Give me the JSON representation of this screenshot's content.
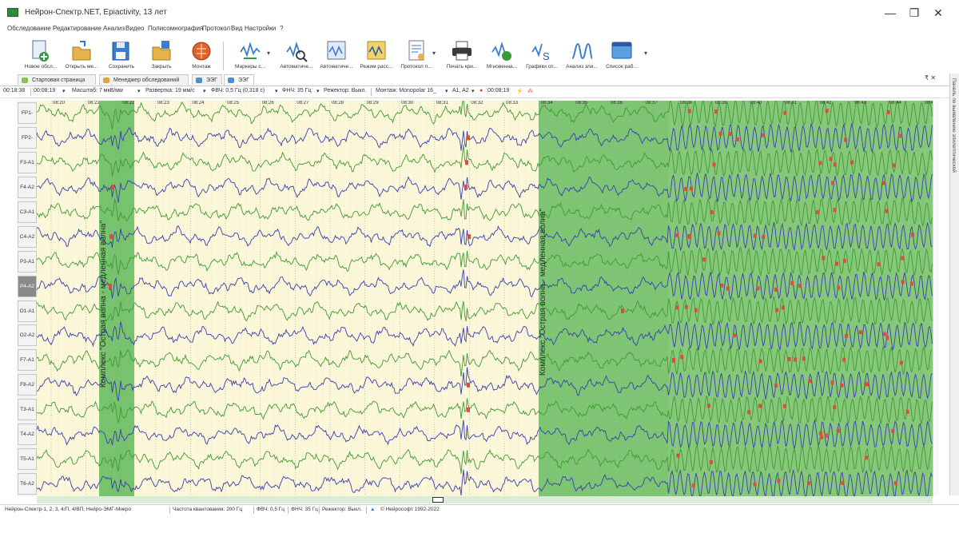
{
  "window": {
    "title": "Нейрон-Спектр.NET, Epiactivity, 13 лет",
    "minimize": "—",
    "maximize": "❐",
    "close": "✕"
  },
  "menu": [
    "Обследование",
    "Редактирование",
    "Анализ",
    "Видео",
    "Полисомнография",
    "Протокол",
    "Вид",
    "Настройки",
    "?"
  ],
  "toolbar": [
    {
      "label": "Новое обсл...",
      "icon": "new-exam-icon"
    },
    {
      "label": "Открыть ме...",
      "icon": "open-icon"
    },
    {
      "label": "Сохранить",
      "icon": "save-icon"
    },
    {
      "label": "Закрыть",
      "icon": "close-exam-icon"
    },
    {
      "label": "Монтаж",
      "icon": "montage-icon"
    },
    {
      "label": "Маркеры с...",
      "icon": "markers-icon"
    },
    {
      "label": "Автоматиче...",
      "icon": "auto-analysis-icon"
    },
    {
      "label": "Автоматиче...",
      "icon": "auto-search-icon"
    },
    {
      "label": "Режим расс...",
      "icon": "view-mode-icon"
    },
    {
      "label": "Протокол п...",
      "icon": "protocol-icon"
    },
    {
      "label": "Печать кри...",
      "icon": "print-icon"
    },
    {
      "label": "Мгновенна...",
      "icon": "instant-map-icon"
    },
    {
      "label": "Графики сп...",
      "icon": "spectrum-graphs-icon"
    },
    {
      "label": "Анализ эли...",
      "icon": "epi-analysis-icon"
    },
    {
      "label": "Список раб...",
      "icon": "work-list-icon"
    }
  ],
  "tabs": [
    {
      "label": "Стартовая страница",
      "active": false
    },
    {
      "label": "Менеджер обследований",
      "active": false
    },
    {
      "label": "ЭЭГ",
      "active": false
    },
    {
      "label": "ЭЭГ",
      "active": true
    }
  ],
  "tab_controls": "₹ ✕",
  "settings": {
    "time_current": "00:18:38",
    "time_window": "00:08:19",
    "scale": "Масштаб: 7 мкВ/мм",
    "sweep": "Развертка: 19 мм/с",
    "hpf": "ФВЧ: 0,5 Гц (0,318 с)",
    "lpf": "ФНЧ: 35 Гц",
    "notch": "Режектор: Выкл.",
    "montage": "Монтаж: Monopolar 16_",
    "reference": "A1, A2",
    "marker_time": "00:08:19"
  },
  "side_panel": "Панель по выявлению эпилептической",
  "channels": [
    "FP1-A1",
    "FP2-A2",
    "F3-A1",
    "F4-A2",
    "C3-A1",
    "C4-A2",
    "P3-A1",
    "P4-A2",
    "O1-A1",
    "O2-A2",
    "F7-A1",
    "F8-A2",
    "T3-A1",
    "T4-A2",
    "T5-A1",
    "T6-A2"
  ],
  "selected_channel": "P4-A2",
  "time_ticks": [
    "08:20",
    "08:21",
    "08:22",
    "08:23",
    "08:24",
    "08:25",
    "08:26",
    "08:27",
    "08:28",
    "08:29",
    "08:30",
    "08:31",
    "08:32",
    "08:33",
    "08:34",
    "08:35",
    "08:36",
    "08:37",
    "08:38",
    "08:39",
    "08:40",
    "08:41",
    "08:42",
    "08:43",
    "08:44",
    "08:45"
  ],
  "annotations": [
    "Комплекс \"Острая волна - медленная волна\"",
    "Комплекс \"Острая волна - медленная волна\""
  ],
  "status": {
    "devices": "Нейрон-Спектр-1, 2, 3, 4/П, 4/ВП, Нейро-ЭМГ-Микро",
    "sampling": "Частота квантования: 200 Гц",
    "hpf": "ФВЧ: 0,5 Гц",
    "lpf": "ФНЧ: 35 Гц",
    "notch": "Режектор: Выкл.",
    "copyright": "© Нейрософт 1992-2022"
  },
  "colors": {
    "eeg_bg": "#fbf7d8",
    "highlight": "#5fb85a",
    "trace_blue": "#3a3fb0",
    "trace_green": "#3f9a33",
    "marker": "#d9503a"
  }
}
